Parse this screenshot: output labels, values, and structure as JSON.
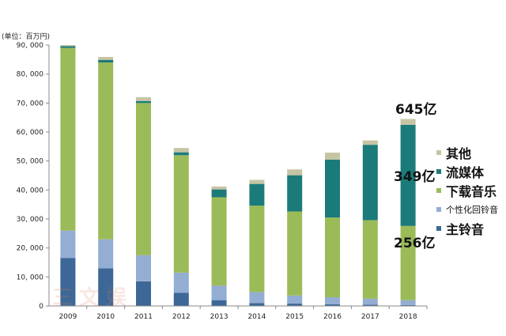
{
  "chart_data": {
    "type": "bar",
    "stacked": true,
    "unit_label": "(单位：百万円)",
    "categories": [
      "2009",
      "2010",
      "2011",
      "2012",
      "2013",
      "2014",
      "2015",
      "2016",
      "2017",
      "2018"
    ],
    "ylim": [
      0,
      90000
    ],
    "yticks": [
      0,
      10000,
      20000,
      30000,
      40000,
      50000,
      60000,
      70000,
      80000,
      90000
    ],
    "ytick_labels": [
      "0",
      "10, 000",
      "20, 000",
      "30, 000",
      "40, 000",
      "50, 000",
      "60, 000",
      "70, 000",
      "80, 000",
      "90, 000"
    ],
    "series": [
      {
        "name": "主铃音",
        "color": "#3c6797",
        "values": [
          16500,
          13000,
          8500,
          4500,
          2000,
          1000,
          800,
          600,
          400,
          300
        ]
      },
      {
        "name": "个性化回铃音",
        "color": "#93add3",
        "values": [
          9500,
          10000,
          9000,
          7000,
          5000,
          3800,
          2800,
          2400,
          2100,
          1700
        ]
      },
      {
        "name": "下载音乐",
        "color": "#9bbb59",
        "values": [
          63000,
          61000,
          52500,
          40500,
          30500,
          29800,
          29000,
          27500,
          27100,
          25600
        ]
      },
      {
        "name": "流媒体",
        "color": "#1b7b7a",
        "values": [
          600,
          900,
          700,
          1000,
          2700,
          7500,
          12500,
          20000,
          26000,
          34900
        ]
      },
      {
        "name": "其他",
        "color": "#c6c4a4",
        "values": [
          400,
          1000,
          1300,
          1500,
          1000,
          1400,
          2000,
          2400,
          1500,
          2000
        ]
      }
    ],
    "annotations": [
      {
        "text": "645亿",
        "target": "2018 total"
      },
      {
        "text": "349亿",
        "target": "2018 流媒体"
      },
      {
        "text": "256亿",
        "target": "2018 下载音乐"
      }
    ]
  },
  "legend": [
    {
      "label": "其他",
      "color": "#c6c4a4"
    },
    {
      "label": "流媒体",
      "color": "#1b7b7a"
    },
    {
      "label": "下载音乐",
      "color": "#9bbb59"
    },
    {
      "label": "个性化回铃音",
      "color": "#93add3"
    },
    {
      "label": "主铃音",
      "color": "#3c6797"
    }
  ],
  "annotations": {
    "total": "645亿",
    "streaming": "349亿",
    "download": "256亿"
  },
  "watermark": "三文娱"
}
